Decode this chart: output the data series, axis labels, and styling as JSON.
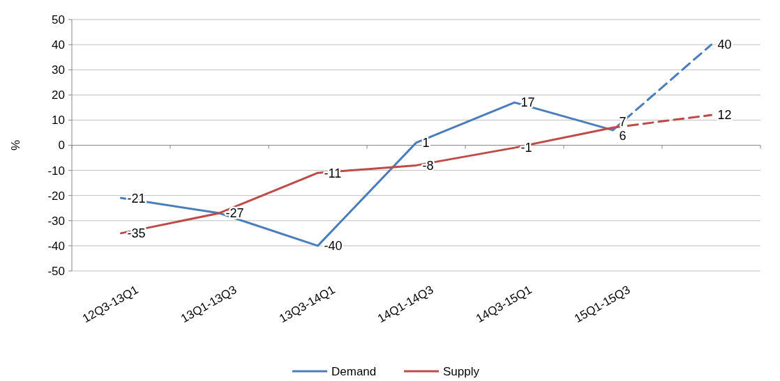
{
  "chart_data": {
    "type": "line",
    "ylabel": "%",
    "categories": [
      "12Q3-13Q1",
      "13Q1-13Q3",
      "13Q3-14Q1",
      "14Q1-14Q3",
      "14Q3-15Q1",
      "15Q1-15Q3",
      null
    ],
    "series": [
      {
        "name": "Demand",
        "color": "#4a7ebb",
        "values": [
          -21,
          -27,
          -40,
          1,
          17,
          6,
          null
        ],
        "value_labels": [
          "-21",
          null,
          "-40",
          "1",
          "17",
          "6",
          null
        ]
      },
      {
        "name": "Supply",
        "color": "#be4b48",
        "values": [
          -35,
          -27,
          -11,
          -8,
          -1,
          7,
          null
        ],
        "value_labels": [
          "-35",
          "-27",
          "-11",
          "-8",
          "-1",
          "7",
          null
        ]
      },
      {
        "color": "#4a7ebb",
        "line_style": "dashed",
        "values": [
          null,
          null,
          null,
          null,
          null,
          6,
          40
        ],
        "value_labels": [
          null,
          null,
          null,
          null,
          null,
          null,
          "40"
        ]
      },
      {
        "color": "#be4b48",
        "line_style": "dashed",
        "values": [
          null,
          null,
          null,
          null,
          null,
          7,
          12
        ],
        "value_labels": [
          null,
          null,
          null,
          null,
          null,
          null,
          "12"
        ]
      }
    ],
    "ylim": [
      -50,
      50
    ],
    "yticks": [
      -50,
      -40,
      -30,
      -20,
      -10,
      0,
      10,
      20,
      30,
      40,
      50
    ],
    "grid": "y",
    "legend": "bottom",
    "marker": "none",
    "line_style": "solid"
  }
}
